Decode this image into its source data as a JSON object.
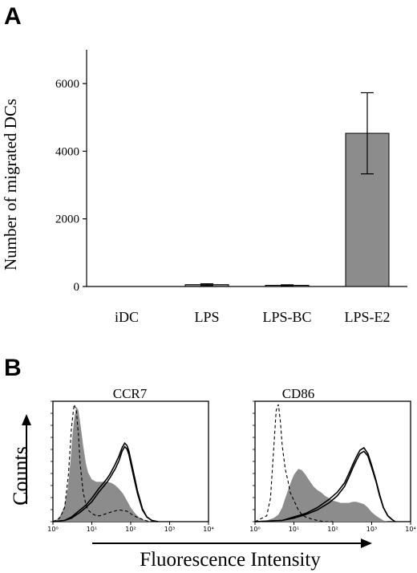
{
  "panels": {
    "a": "A",
    "b": "B"
  },
  "colors": {
    "bar": "#8c8c8c",
    "fill": "#8c8c8c",
    "stroke": "#000000"
  },
  "chart_data": [
    {
      "type": "bar",
      "ylabel": "Number of migrated DCs",
      "categories": [
        "iDC",
        "LPS",
        "LPS-BC",
        "LPS-E2"
      ],
      "values": [
        0,
        55,
        35,
        4530
      ],
      "error": [
        0,
        25,
        15,
        1200
      ],
      "ylim": [
        0,
        7000
      ],
      "yticks": [
        0,
        2000,
        4000,
        6000
      ],
      "grid": false
    },
    {
      "type": "area",
      "title": "CCR7",
      "ylabel": "Counts",
      "xlabel": "Fluorescence Intensity",
      "x_scale": "log",
      "xlim": [
        1,
        10000
      ],
      "x_tick_labels": [
        "10⁰",
        "10¹",
        "10²",
        "10³",
        "10⁴"
      ],
      "series": [
        {
          "style": "filled",
          "x": [
            1,
            1.3,
            1.6,
            2,
            2.4,
            2.8,
            3.2,
            3.6,
            4,
            4.5,
            5,
            6,
            7,
            8,
            10,
            13,
            16,
            20,
            25,
            32,
            40,
            50,
            63,
            80,
            100,
            130,
            160,
            200,
            260,
            330,
            500
          ],
          "y": [
            0,
            2,
            6,
            14,
            28,
            50,
            75,
            90,
            98,
            95,
            85,
            65,
            50,
            42,
            36,
            34,
            34,
            34,
            34,
            33,
            31,
            28,
            24,
            18,
            12,
            7,
            4,
            2,
            1,
            0,
            0
          ]
        },
        {
          "style": "dashed",
          "x": [
            1,
            1.5,
            2,
            2.5,
            3,
            3.5,
            4,
            4.5,
            5,
            6,
            7,
            8,
            10,
            13,
            16,
            20,
            30,
            50,
            80,
            120,
            200,
            300
          ],
          "y": [
            0,
            3,
            12,
            40,
            80,
            100,
            95,
            75,
            50,
            25,
            15,
            10,
            7,
            5,
            5,
            6,
            8,
            10,
            9,
            5,
            2,
            0
          ]
        },
        {
          "style": "solid",
          "x": [
            1,
            2,
            3,
            5,
            7,
            10,
            15,
            20,
            25,
            30,
            40,
            50,
            60,
            70,
            80,
            90,
            100,
            120,
            150,
            200,
            260,
            350,
            500
          ],
          "y": [
            0,
            1,
            3,
            8,
            12,
            17,
            25,
            30,
            34,
            38,
            45,
            52,
            60,
            64,
            62,
            57,
            50,
            38,
            24,
            10,
            4,
            1,
            0
          ]
        },
        {
          "style": "solid",
          "x": [
            1,
            2,
            3,
            5,
            7,
            10,
            15,
            20,
            25,
            30,
            40,
            50,
            60,
            70,
            80,
            90,
            100,
            120,
            150,
            200,
            260,
            350,
            500
          ],
          "y": [
            0,
            1,
            4,
            10,
            14,
            20,
            28,
            33,
            37,
            41,
            49,
            56,
            63,
            67,
            65,
            60,
            53,
            41,
            26,
            11,
            4,
            1,
            0
          ]
        }
      ]
    },
    {
      "type": "area",
      "title": "CD86",
      "x_scale": "log",
      "xlim": [
        1,
        10000
      ],
      "x_tick_labels": [
        "10⁰",
        "10¹",
        "10²",
        "10³",
        "10⁴"
      ],
      "series": [
        {
          "style": "filled",
          "x": [
            1,
            2,
            3,
            4,
            5,
            6,
            8,
            10,
            13,
            16,
            20,
            25,
            32,
            40,
            50,
            63,
            80,
            100,
            130,
            160,
            200,
            260,
            330,
            400,
            500,
            630,
            800,
            1000,
            1300,
            1600,
            2000,
            2600,
            3300
          ],
          "y": [
            0,
            1,
            3,
            6,
            12,
            20,
            32,
            40,
            45,
            44,
            40,
            35,
            30,
            27,
            25,
            22,
            20,
            18,
            17,
            16,
            16,
            16,
            17,
            17,
            16,
            15,
            12,
            8,
            5,
            3,
            1,
            0,
            0
          ]
        },
        {
          "style": "dashed",
          "x": [
            1,
            2,
            2.5,
            3,
            3.5,
            4,
            4.5,
            5,
            6,
            7,
            8,
            10,
            13,
            16,
            20,
            30,
            40,
            60,
            100
          ],
          "y": [
            0,
            5,
            20,
            60,
            95,
            100,
            85,
            65,
            45,
            35,
            25,
            18,
            10,
            6,
            4,
            2,
            1,
            0,
            0
          ]
        },
        {
          "style": "solid",
          "x": [
            1,
            5,
            10,
            20,
            40,
            80,
            130,
            200,
            260,
            330,
            400,
            500,
            630,
            800,
            1000,
            1300,
            1600,
            2000,
            2600,
            3300,
            4000
          ],
          "y": [
            0,
            1,
            3,
            6,
            10,
            16,
            22,
            30,
            38,
            46,
            52,
            58,
            60,
            56,
            46,
            34,
            22,
            12,
            5,
            2,
            0
          ]
        },
        {
          "style": "solid",
          "x": [
            1,
            5,
            10,
            20,
            40,
            80,
            130,
            200,
            260,
            330,
            400,
            500,
            630,
            800,
            1000,
            1300,
            1600,
            2000,
            2600,
            3300,
            4000
          ],
          "y": [
            0,
            1,
            4,
            7,
            12,
            19,
            25,
            33,
            41,
            49,
            55,
            61,
            63,
            58,
            48,
            35,
            23,
            12,
            5,
            2,
            0
          ]
        }
      ]
    }
  ]
}
